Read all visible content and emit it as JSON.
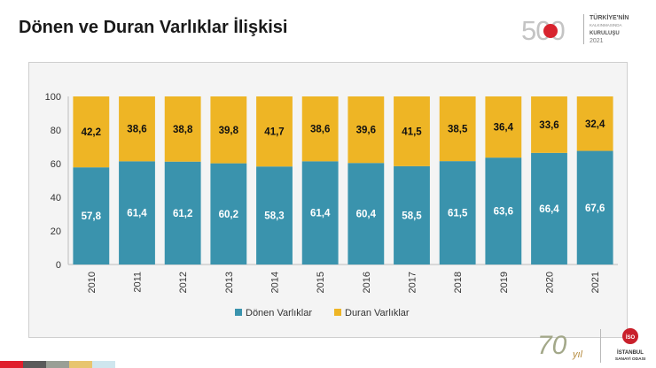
{
  "slide": {
    "title": "Dönen ve Duran Varlıklar İlişkisi",
    "logo_500": {
      "number": "500",
      "line1": "TÜRKİYE'NİN",
      "line2": "KALKINMASINDA",
      "line3": "KURULUŞU",
      "year": "2021"
    },
    "logo_70": {
      "number": "70",
      "suffix": "yıl"
    },
    "logo_iso": {
      "badge": "İSO",
      "line1": "İSTANBUL",
      "line2": "SANAYİ ODASI"
    },
    "stripe_colors": [
      "#e01f2d",
      "#5a5a5a",
      "#9a9f96",
      "#e8c56f",
      "#cfe6ee"
    ]
  },
  "chart_data": {
    "type": "bar",
    "stacked": true,
    "categories": [
      "2010",
      "2011",
      "2012",
      "2013",
      "2014",
      "2015",
      "2016",
      "2017",
      "2018",
      "2019",
      "2020",
      "2021"
    ],
    "series": [
      {
        "name": "Dönen Varlıklar",
        "color": "#3a93ad",
        "values": [
          57.8,
          61.4,
          61.2,
          60.2,
          58.3,
          61.4,
          60.4,
          58.5,
          61.5,
          63.6,
          66.4,
          67.6
        ],
        "labels": [
          "57,8",
          "61,4",
          "61,2",
          "60,2",
          "58,3",
          "61,4",
          "60,4",
          "58,5",
          "61,5",
          "63,6",
          "66,4",
          "67,6"
        ]
      },
      {
        "name": "Duran Varlıklar",
        "color": "#eeb525",
        "values": [
          42.2,
          38.6,
          38.8,
          39.8,
          41.7,
          38.6,
          39.6,
          41.5,
          38.5,
          36.4,
          33.6,
          32.4
        ],
        "labels": [
          "42,2",
          "38,6",
          "38,8",
          "39,8",
          "41,7",
          "38,6",
          "39,6",
          "41,5",
          "38,5",
          "36,4",
          "33,6",
          "32,4"
        ]
      }
    ],
    "ylim": [
      0,
      100
    ],
    "yticks": [
      0,
      20,
      40,
      60,
      80,
      100
    ],
    "grid": false,
    "legend": "bottom",
    "xlabel": "",
    "ylabel": ""
  }
}
